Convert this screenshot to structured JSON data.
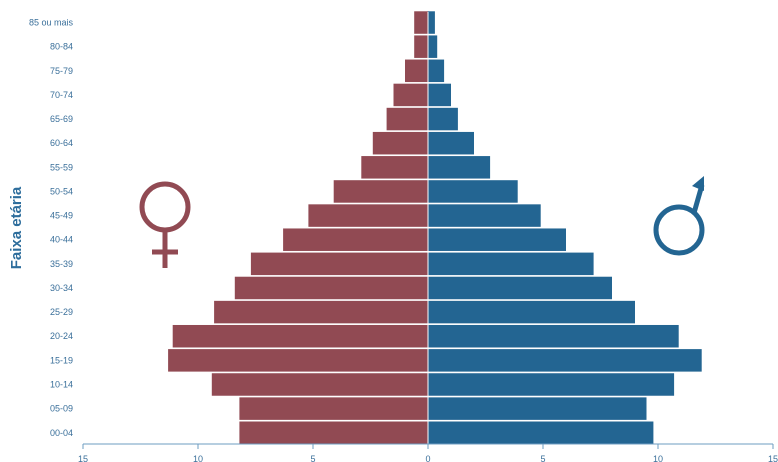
{
  "chart_data": {
    "type": "bar",
    "orientation": "horizontal-population-pyramid",
    "ylabel": "Faixa etária",
    "xlabel": "",
    "xlim": [
      -15,
      15
    ],
    "x_tick_values": [
      -15,
      -10,
      -5,
      0,
      5,
      10,
      15
    ],
    "x_tick_labels": [
      "15",
      "10",
      "5",
      "0",
      "5",
      "10",
      "15"
    ],
    "categories": [
      "00-04",
      "05-09",
      "10-14",
      "15-19",
      "20-24",
      "25-29",
      "30-34",
      "35-39",
      "40-44",
      "45-49",
      "50-54",
      "55-59",
      "60-64",
      "65-69",
      "70-74",
      "75-79",
      "80-84",
      "85 ou mais"
    ],
    "series": [
      {
        "values": [
          8.2,
          8.2,
          9.4,
          11.3,
          11.1,
          9.3,
          8.4,
          7.7,
          6.3,
          5.2,
          4.1,
          2.9,
          2.4,
          1.8,
          1.5,
          1.0,
          0.6,
          0.6
        ]
      },
      {
        "values": [
          9.8,
          9.5,
          10.7,
          11.9,
          10.9,
          9.0,
          8.0,
          7.2,
          6.0,
          4.9,
          3.9,
          2.7,
          2.0,
          1.3,
          1.0,
          0.7,
          0.4,
          0.3
        ]
      }
    ],
    "colors": {
      "female": "#914a53",
      "male": "#236592",
      "axis": "#4b86b4"
    },
    "grid": false,
    "icons": [
      "female-symbol",
      "male-symbol"
    ]
  }
}
